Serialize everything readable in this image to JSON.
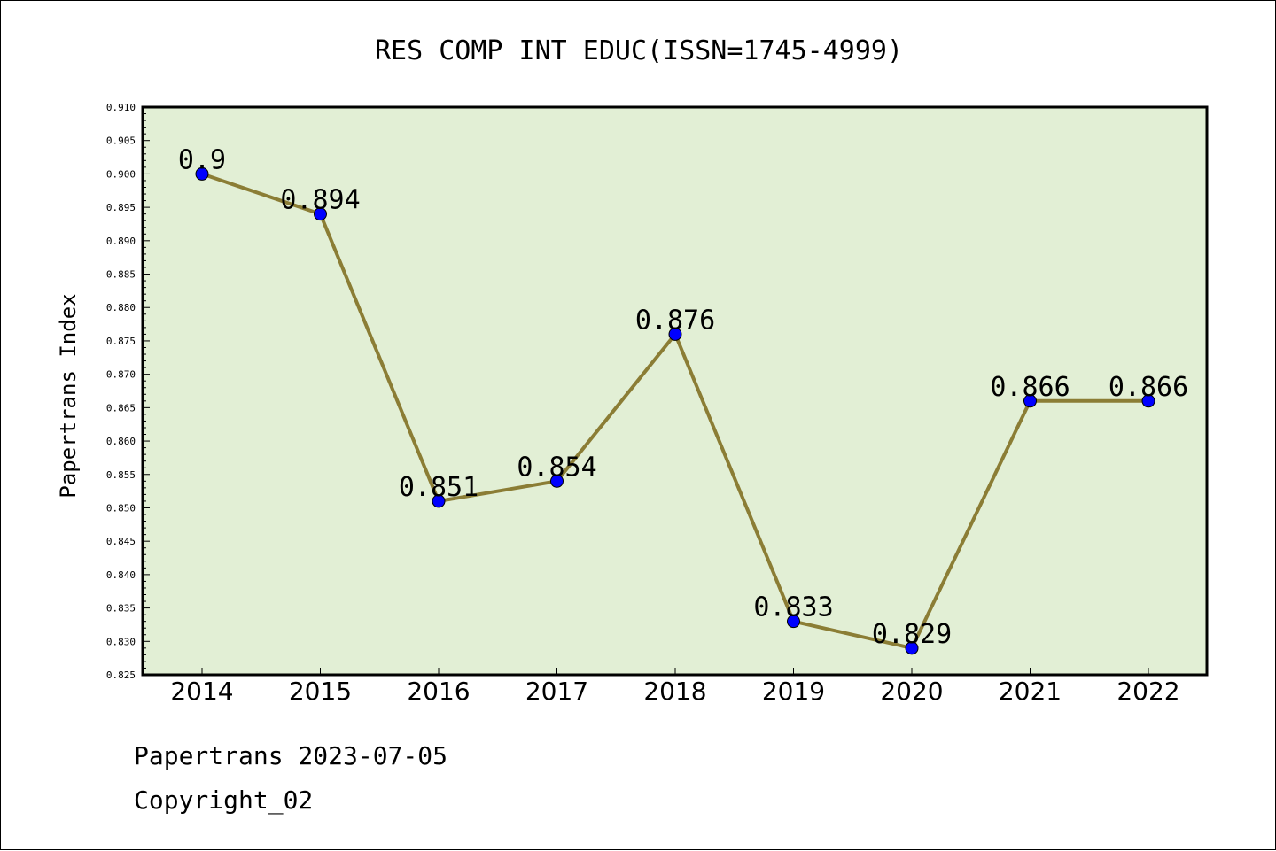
{
  "chart_data": {
    "type": "line",
    "title": "RES COMP INT EDUC(ISSN=1745-4999)",
    "xlabel": "",
    "ylabel": "Papertrans Index",
    "categories": [
      "2014",
      "2015",
      "2016",
      "2017",
      "2018",
      "2019",
      "2020",
      "2021",
      "2022"
    ],
    "series": [
      {
        "values": [
          0.9,
          0.894,
          0.851,
          0.854,
          0.876,
          0.833,
          0.829,
          0.866,
          0.866
        ],
        "labels": [
          "0.9",
          "0.894",
          "0.851",
          "0.854",
          "0.876",
          "0.833",
          "0.829",
          "0.866",
          "0.866"
        ],
        "line_color": "#8b7d35",
        "marker_color": "#0000ff"
      }
    ],
    "ylim": [
      0.825,
      0.91
    ],
    "yticks": [
      "0.825",
      "0.830",
      "0.835",
      "0.840",
      "0.845",
      "0.850",
      "0.855",
      "0.860",
      "0.865",
      "0.870",
      "0.875",
      "0.880",
      "0.885",
      "0.890",
      "0.895",
      "0.900",
      "0.905",
      "0.910"
    ],
    "plot_background": "#e2efd5",
    "grid": false
  },
  "footer": {
    "line1": "Papertrans 2023-07-05",
    "line2": "Copyright_02"
  }
}
